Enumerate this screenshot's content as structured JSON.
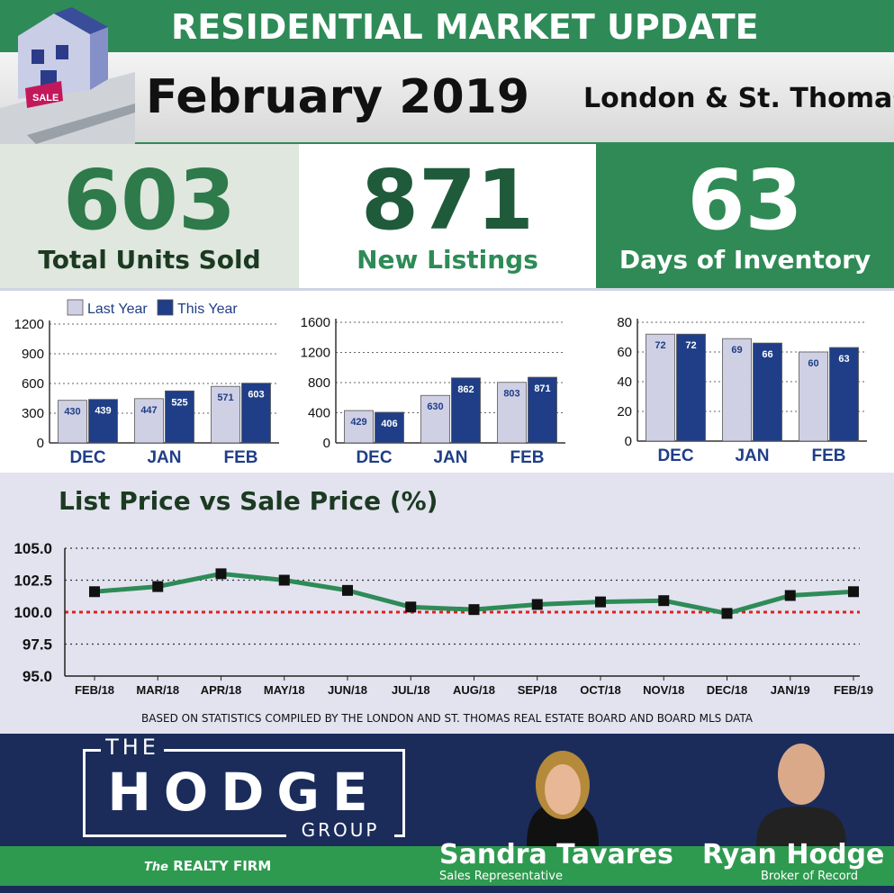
{
  "header": {
    "title": "RESIDENTIAL MARKET UPDATE",
    "month": "February 2019",
    "region": "London & St. Thomas"
  },
  "kpis": [
    {
      "value": "603",
      "label": "Total Units Sold"
    },
    {
      "value": "871",
      "label": "New Listings"
    },
    {
      "value": "63",
      "label": "Days of Inventory"
    }
  ],
  "colors": {
    "brand_green": "#2e8b57",
    "dark_green": "#1f5b3a",
    "last_year": "#cfd0e4",
    "this_year": "#1f3e87",
    "reference_line": "#e02020",
    "navy": "#1b2c5b"
  },
  "chart_data": [
    {
      "type": "bar",
      "categories": [
        "DEC",
        "JAN",
        "FEB"
      ],
      "series": [
        {
          "name": "Last Year",
          "values": [
            430,
            447,
            571
          ]
        },
        {
          "name": "This Year",
          "values": [
            439,
            525,
            603
          ]
        }
      ],
      "ylim": [
        0,
        1200
      ],
      "yticks": [
        0,
        300,
        600,
        900,
        1200
      ],
      "grid": true,
      "legend": "top"
    },
    {
      "type": "bar",
      "categories": [
        "DEC",
        "JAN",
        "FEB"
      ],
      "series": [
        {
          "values": [
            429,
            630,
            803
          ]
        },
        {
          "values": [
            406,
            862,
            871
          ]
        }
      ],
      "ylim": [
        0,
        1600
      ],
      "yticks": [
        0,
        400,
        800,
        1200,
        1600
      ],
      "grid": true
    },
    {
      "type": "bar",
      "categories": [
        "DEC",
        "JAN",
        "FEB"
      ],
      "series": [
        {
          "values": [
            72,
            69,
            60
          ]
        },
        {
          "values": [
            72,
            66,
            63
          ]
        }
      ],
      "ylim": [
        0,
        80
      ],
      "yticks": [
        0,
        20,
        40,
        60,
        80
      ],
      "grid": true
    },
    {
      "type": "line",
      "title": "List Price vs Sale Price (%)",
      "x": [
        "FEB/18",
        "MAR/18",
        "APR/18",
        "MAY/18",
        "JUN/18",
        "JUL/18",
        "AUG/18",
        "SEP/18",
        "OCT/18",
        "NOV/18",
        "DEC/18",
        "JAN/19",
        "FEB/19"
      ],
      "values": [
        101.6,
        102.0,
        103.0,
        102.5,
        101.7,
        100.4,
        100.2,
        100.6,
        100.8,
        100.9,
        99.9,
        101.3,
        101.6
      ],
      "ylim": [
        95.0,
        105.0
      ],
      "yticks": [
        "95.0",
        "97.5",
        "100.0",
        "102.5",
        "105.0"
      ],
      "reference_value": 100.0,
      "grid": true
    }
  ],
  "footnote": "BASED ON STATISTICS COMPILED BY THE LONDON AND ST. THOMAS REAL ESTATE BOARD AND BOARD MLS DATA",
  "footer": {
    "brand_the": "THE",
    "brand_name": "HODGE",
    "brand_group": "GROUP",
    "brokerage_prefix": "The",
    "brokerage": "REALTY FIRM",
    "agents": [
      {
        "name": "Sandra Tavares",
        "role": "Sales Representative"
      },
      {
        "name": "Ryan Hodge",
        "role": "Broker of Record"
      }
    ]
  }
}
